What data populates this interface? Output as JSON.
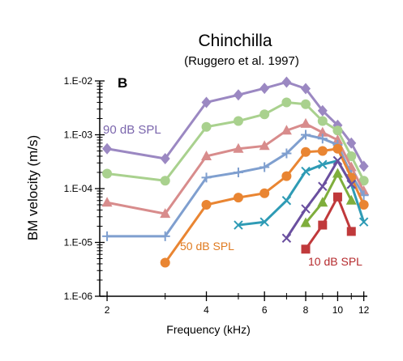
{
  "chart_data": {
    "type": "line",
    "title": "Chinchilla",
    "subtitle": "(Ruggero et al. 1997)",
    "panel_label": "B",
    "xlabel": "Frequency (kHz)",
    "ylabel": "BM velocity (m/s)",
    "xscale": "log",
    "yscale": "log",
    "xlim": [
      1.9,
      12.3
    ],
    "ylim": [
      1e-06,
      0.01
    ],
    "x_ticks": [
      2,
      4,
      6,
      8,
      10,
      12
    ],
    "x_tick_labels": [
      "2",
      "4",
      "6",
      "8",
      "10",
      "12"
    ],
    "y_ticks": [
      1e-06,
      1e-05,
      0.0001,
      0.001,
      0.01
    ],
    "y_tick_labels": [
      "1.E-06",
      "1.E-05",
      "1.E-04",
      "1.E-03",
      "1.E-02"
    ],
    "grid": false,
    "annotations": [
      "90 dB SPL",
      "50 dB SPL",
      "10 dB SPL"
    ],
    "series": [
      {
        "name": "90 dB SPL",
        "color": "#9b88c2",
        "marker": "diamond",
        "x": [
          2,
          3,
          4,
          5,
          6,
          7,
          8,
          9,
          10,
          11,
          12
        ],
        "y": [
          0.00055,
          0.00036,
          0.004,
          0.0055,
          0.0073,
          0.0095,
          0.0072,
          0.0028,
          0.0015,
          0.0007,
          0.00026
        ]
      },
      {
        "name": "",
        "color": "#a9d18e",
        "marker": "circle",
        "x": [
          2,
          3,
          4,
          5,
          6,
          7,
          8,
          9,
          10,
          11,
          12
        ],
        "y": [
          0.00019,
          0.00014,
          0.0014,
          0.0018,
          0.0024,
          0.004,
          0.0037,
          0.0018,
          0.0012,
          0.0004,
          0.00014
        ]
      },
      {
        "name": "",
        "color": "#d88c8c",
        "marker": "triangle",
        "x": [
          2,
          3,
          4,
          5,
          6,
          7,
          8,
          9,
          10,
          11,
          12
        ],
        "y": [
          5.5e-05,
          3.4e-05,
          0.0004,
          0.00055,
          0.00062,
          0.0012,
          0.0016,
          0.0011,
          0.0008,
          0.00025,
          9e-05
        ]
      },
      {
        "name": "",
        "color": "#7f9fcf",
        "marker": "plus",
        "x": [
          2,
          3,
          4,
          5,
          6,
          7,
          8,
          9,
          10,
          11,
          12
        ],
        "y": [
          1.3e-05,
          1.3e-05,
          0.00016,
          0.0002,
          0.00025,
          0.00045,
          0.001,
          0.00085,
          0.00065,
          0.00018,
          7.5e-05
        ]
      },
      {
        "name": "50 dB SPL",
        "color": "#e98532",
        "marker": "circle",
        "x": [
          3,
          4,
          5,
          6,
          7,
          8,
          9,
          10,
          11,
          12
        ],
        "y": [
          4.2e-06,
          5e-05,
          6.8e-05,
          8.2e-05,
          0.00017,
          0.00048,
          0.0005,
          0.00055,
          0.00016,
          5e-05
        ]
      },
      {
        "name": "",
        "color": "#2e9bb5",
        "marker": "x",
        "x": [
          5,
          6,
          7,
          8,
          9,
          10,
          11,
          12
        ],
        "y": [
          2.1e-05,
          2.4e-05,
          6e-05,
          0.00021,
          0.00028,
          0.00033,
          0.00012,
          2.4e-05
        ]
      },
      {
        "name": "",
        "color": "#6a4f9f",
        "marker": "x",
        "x": [
          7,
          8,
          9,
          10,
          11
        ],
        "y": [
          1.2e-05,
          4.2e-05,
          0.00011,
          0.00033,
          0.00012
        ]
      },
      {
        "name": "",
        "color": "#7fae3c",
        "marker": "triangle",
        "x": [
          8,
          9,
          10,
          11
        ],
        "y": [
          2.3e-05,
          5.5e-05,
          0.00019,
          6e-05
        ]
      },
      {
        "name": "10 dB SPL",
        "color": "#c0393b",
        "marker": "square",
        "x": [
          8,
          9,
          10,
          11
        ],
        "y": [
          7.5e-06,
          2.1e-05,
          7e-05,
          1.6e-05
        ]
      }
    ]
  }
}
